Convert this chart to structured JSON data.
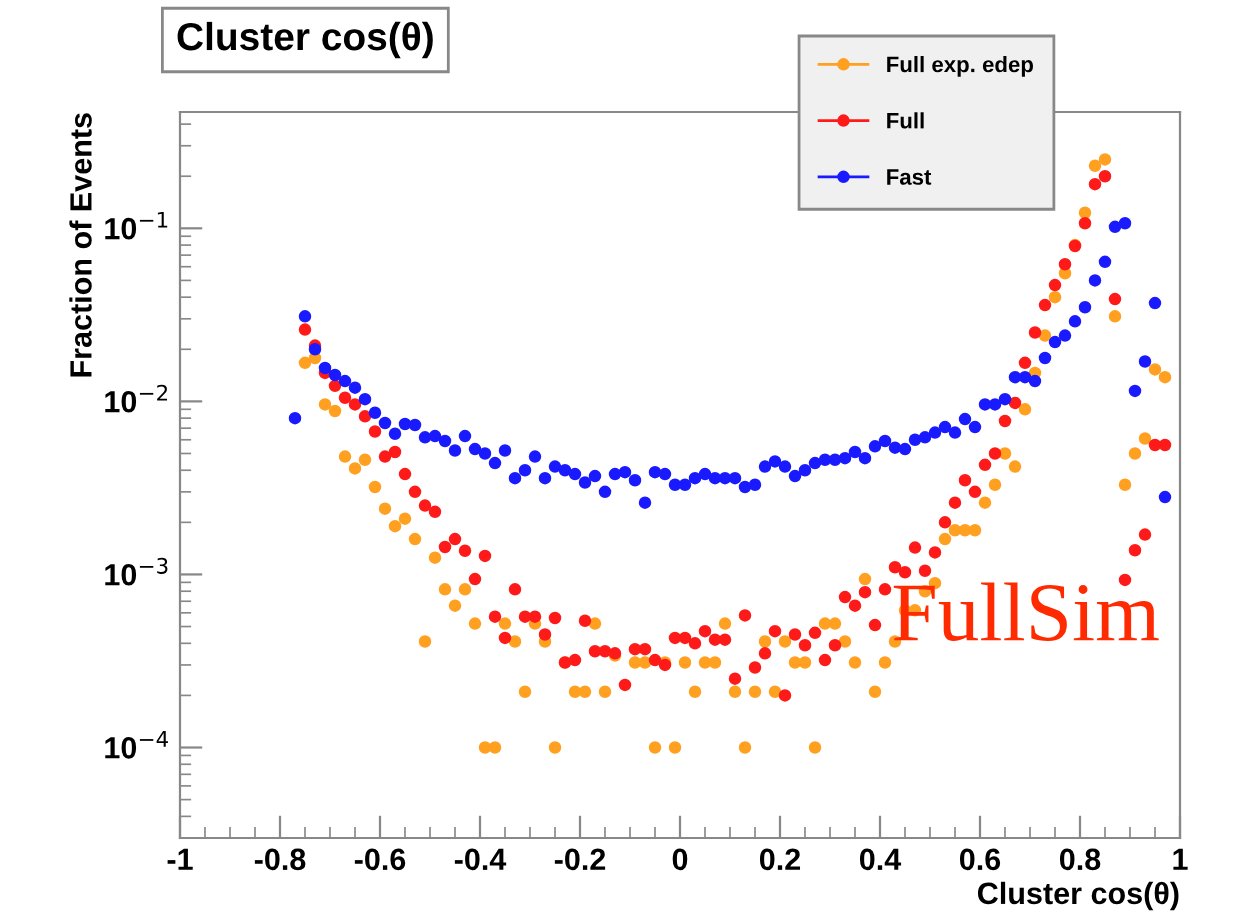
{
  "chart_data": {
    "type": "scatter",
    "title": "Cluster cos(θ)",
    "xlabel": "Cluster cos(θ)",
    "ylabel": "Fraction of Events",
    "log": "y",
    "grid": false,
    "legend": "top right",
    "marker": "circle",
    "xlim": [
      -1,
      1
    ],
    "xticks": [
      -1,
      -0.8,
      -0.6,
      -0.4,
      -0.2,
      0,
      0.2,
      0.4,
      0.6,
      0.8,
      1
    ],
    "ylim": [
      3e-05,
      0.47
    ],
    "yticks": [
      {
        "value": 0.0001,
        "label": "10$^{−4}$"
      },
      {
        "value": 0.001,
        "label": "10$^{−3}$"
      },
      {
        "value": 0.01,
        "label": "10$^{−2}$"
      },
      {
        "value": 0.1,
        "label": "10$^{−1}$"
      }
    ],
    "annotations": [
      "FullSim"
    ],
    "series": [
      {
        "name": "Full exp. edep",
        "color": "#ffa020",
        "x": [
          -0.75,
          -0.73,
          -0.71,
          -0.69,
          -0.67,
          -0.65,
          -0.63,
          -0.61,
          -0.59,
          -0.57,
          -0.55,
          -0.53,
          -0.51,
          -0.49,
          -0.47,
          -0.45,
          -0.43,
          -0.41,
          -0.39,
          -0.37,
          -0.35,
          -0.33,
          -0.31,
          -0.29,
          -0.27,
          -0.25,
          -0.23,
          -0.21,
          -0.19,
          -0.17,
          -0.15,
          -0.13,
          -0.09,
          -0.07,
          -0.05,
          -0.03,
          -0.01,
          0.01,
          0.03,
          0.05,
          0.07,
          0.09,
          0.11,
          0.13,
          0.15,
          0.17,
          0.19,
          0.21,
          0.23,
          0.25,
          0.27,
          0.29,
          0.31,
          0.33,
          0.35,
          0.37,
          0.39,
          0.41,
          0.43,
          0.45,
          0.47,
          0.49,
          0.51,
          0.53,
          0.55,
          0.57,
          0.59,
          0.61,
          0.63,
          0.65,
          0.67,
          0.69,
          0.71,
          0.73,
          0.75,
          0.77,
          0.79,
          0.81,
          0.83,
          0.85,
          0.87,
          0.89,
          0.91,
          0.93,
          0.95,
          0.97
        ],
        "values": [
          0.0167,
          0.0178,
          0.0096,
          0.0088,
          0.0048,
          0.0041,
          0.0046,
          0.0032,
          0.0024,
          0.0019,
          0.0021,
          0.0016,
          0.00041,
          0.00125,
          0.00082,
          0.00066,
          0.00082,
          0.00052,
          0.0001,
          0.0001,
          0.00052,
          0.00041,
          0.00021,
          0.00052,
          0.00041,
          0.0001,
          0.00031,
          0.00021,
          0.00021,
          0.00052,
          0.00021,
          0.00034,
          0.00031,
          0.00031,
          0.0001,
          0.00031,
          0.0001,
          0.00031,
          0.00021,
          0.00031,
          0.00031,
          0.00052,
          0.00021,
          0.0001,
          0.00021,
          0.00041,
          0.00021,
          0.00041,
          0.00031,
          0.00031,
          0.0001,
          0.00052,
          0.00052,
          0.00041,
          0.00031,
          0.00094,
          0.00021,
          0.00031,
          0.00041,
          0.00062,
          0.00062,
          0.0008,
          0.00089,
          0.0016,
          0.0018,
          0.0018,
          0.0018,
          0.0026,
          0.0033,
          0.005,
          0.0042,
          0.009,
          0.0146,
          0.024,
          0.04,
          0.055,
          0.08,
          0.123,
          0.23,
          0.25,
          0.031,
          0.0033,
          0.005,
          0.0061,
          0.0153,
          0.0138
        ]
      },
      {
        "name": "Full",
        "color": "#ff1a1a",
        "x": [
          -0.75,
          -0.73,
          -0.71,
          -0.69,
          -0.67,
          -0.65,
          -0.63,
          -0.61,
          -0.59,
          -0.57,
          -0.55,
          -0.53,
          -0.51,
          -0.49,
          -0.47,
          -0.45,
          -0.43,
          -0.41,
          -0.39,
          -0.37,
          -0.35,
          -0.33,
          -0.31,
          -0.29,
          -0.27,
          -0.25,
          -0.23,
          -0.21,
          -0.19,
          -0.17,
          -0.15,
          -0.13,
          -0.11,
          -0.09,
          -0.07,
          -0.05,
          -0.03,
          -0.01,
          0.01,
          0.03,
          0.05,
          0.07,
          0.09,
          0.11,
          0.13,
          0.15,
          0.17,
          0.19,
          0.21,
          0.23,
          0.25,
          0.27,
          0.29,
          0.31,
          0.33,
          0.35,
          0.37,
          0.39,
          0.41,
          0.43,
          0.45,
          0.47,
          0.49,
          0.51,
          0.53,
          0.55,
          0.57,
          0.59,
          0.61,
          0.63,
          0.65,
          0.67,
          0.69,
          0.71,
          0.73,
          0.75,
          0.77,
          0.79,
          0.81,
          0.83,
          0.85,
          0.87,
          0.89,
          0.91,
          0.93,
          0.95,
          0.97
        ],
        "values": [
          0.026,
          0.021,
          0.0146,
          0.0123,
          0.0105,
          0.0096,
          0.0082,
          0.0067,
          0.0048,
          0.0051,
          0.0038,
          0.003,
          0.0025,
          0.0023,
          0.00144,
          0.0016,
          0.00137,
          0.00094,
          0.00128,
          0.00057,
          0.00043,
          0.00082,
          0.00057,
          0.00057,
          0.00045,
          0.00056,
          0.00031,
          0.00032,
          0.00054,
          0.00036,
          0.00036,
          0.00035,
          0.00023,
          0.00037,
          0.00037,
          0.00032,
          0.0003,
          0.00043,
          0.00043,
          0.0004,
          0.00047,
          0.00042,
          0.00042,
          0.00025,
          0.00058,
          0.00029,
          0.00035,
          0.00047,
          0.0002,
          0.00045,
          0.00039,
          0.00046,
          0.00032,
          0.00039,
          0.00074,
          0.00066,
          0.00079,
          0.00051,
          0.00082,
          0.0011,
          0.00103,
          0.00143,
          0.00105,
          0.00134,
          0.002,
          0.0026,
          0.0035,
          0.003,
          0.0043,
          0.005,
          0.0077,
          0.0098,
          0.0167,
          0.025,
          0.036,
          0.047,
          0.062,
          0.079,
          0.107,
          0.18,
          0.2,
          0.039,
          0.00093,
          0.00138,
          0.0017,
          0.0056,
          0.0056
        ]
      },
      {
        "name": "Fast",
        "color": "#1a1aff",
        "x": [
          -0.77,
          -0.75,
          -0.73,
          -0.71,
          -0.69,
          -0.67,
          -0.65,
          -0.63,
          -0.61,
          -0.59,
          -0.57,
          -0.55,
          -0.53,
          -0.51,
          -0.49,
          -0.47,
          -0.45,
          -0.43,
          -0.41,
          -0.39,
          -0.37,
          -0.35,
          -0.33,
          -0.31,
          -0.29,
          -0.27,
          -0.25,
          -0.23,
          -0.21,
          -0.19,
          -0.17,
          -0.15,
          -0.13,
          -0.11,
          -0.09,
          -0.07,
          -0.05,
          -0.03,
          -0.01,
          0.01,
          0.03,
          0.05,
          0.07,
          0.09,
          0.11,
          0.13,
          0.15,
          0.17,
          0.19,
          0.21,
          0.23,
          0.25,
          0.27,
          0.29,
          0.31,
          0.33,
          0.35,
          0.37,
          0.39,
          0.41,
          0.43,
          0.45,
          0.47,
          0.49,
          0.51,
          0.53,
          0.55,
          0.57,
          0.59,
          0.61,
          0.63,
          0.65,
          0.67,
          0.69,
          0.71,
          0.73,
          0.75,
          0.77,
          0.79,
          0.81,
          0.83,
          0.85,
          0.87,
          0.89,
          0.91,
          0.93,
          0.95,
          0.97
        ],
        "values": [
          0.008,
          0.031,
          0.02,
          0.0156,
          0.0142,
          0.0131,
          0.012,
          0.0103,
          0.0086,
          0.0075,
          0.0065,
          0.0074,
          0.0073,
          0.0062,
          0.0063,
          0.0059,
          0.0052,
          0.0063,
          0.0053,
          0.005,
          0.0044,
          0.0052,
          0.0036,
          0.004,
          0.0048,
          0.0036,
          0.0042,
          0.004,
          0.0038,
          0.0034,
          0.0037,
          0.003,
          0.0038,
          0.0039,
          0.0035,
          0.0026,
          0.0039,
          0.0038,
          0.0033,
          0.0033,
          0.0036,
          0.0038,
          0.0036,
          0.0036,
          0.0036,
          0.0032,
          0.0033,
          0.0042,
          0.0045,
          0.0042,
          0.0037,
          0.004,
          0.0044,
          0.0046,
          0.0046,
          0.0047,
          0.0051,
          0.0047,
          0.0055,
          0.0059,
          0.0054,
          0.0053,
          0.006,
          0.0062,
          0.0066,
          0.0071,
          0.0066,
          0.0079,
          0.0071,
          0.0096,
          0.0096,
          0.0103,
          0.0138,
          0.0138,
          0.0131,
          0.0178,
          0.022,
          0.024,
          0.029,
          0.035,
          0.05,
          0.064,
          0.102,
          0.107,
          0.0115,
          0.017,
          0.037,
          0.0028
        ]
      }
    ]
  }
}
